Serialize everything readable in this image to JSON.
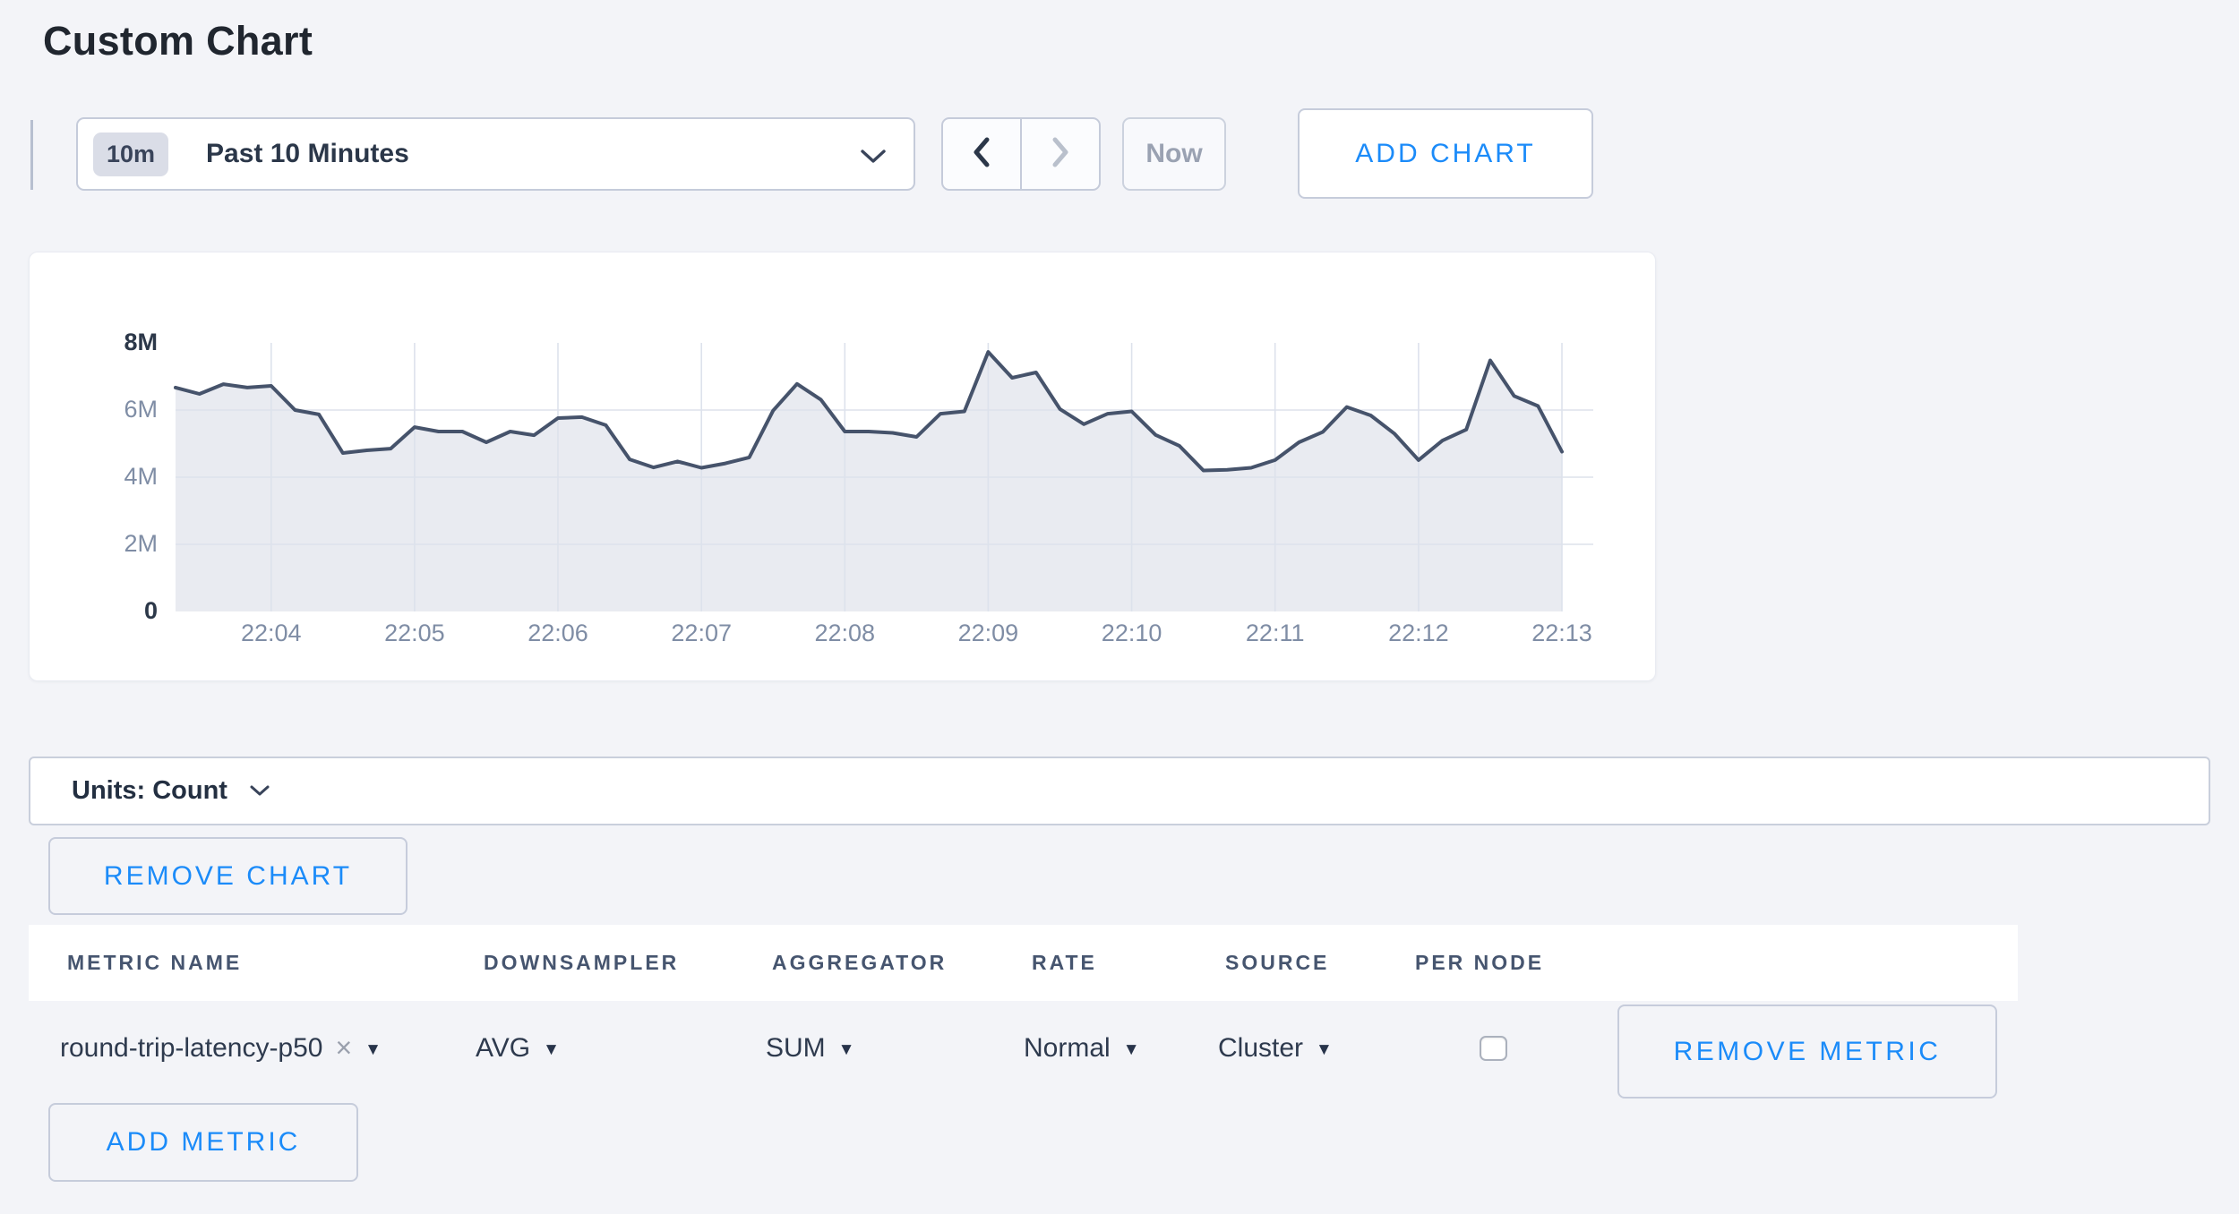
{
  "page_title": "Custom Chart",
  "toolbar": {
    "range_badge": "10m",
    "range_label": "Past 10 Minutes",
    "now_label": "Now",
    "add_chart_label": "ADD CHART"
  },
  "chart_card": {
    "units_label": "Units: Count",
    "remove_chart_label": "REMOVE CHART"
  },
  "metrics_table": {
    "headers": [
      "METRIC NAME",
      "DOWNSAMPLER",
      "AGGREGATOR",
      "RATE",
      "SOURCE",
      "PER NODE"
    ],
    "row": {
      "metric_name": "round-trip-latency-p50",
      "downsampler": "AVG",
      "aggregator": "SUM",
      "rate": "Normal",
      "source": "Cluster",
      "per_node_checked": false
    },
    "remove_metric_label": "REMOVE METRIC",
    "add_metric_label": "ADD METRIC"
  },
  "icons": {
    "dropdown_arrow": "▼",
    "remove_tag": "×"
  },
  "colors": {
    "accent_blue": "#1b8bf9",
    "line": "#46536b",
    "area_fill": "#e9ebf1",
    "grid": "#dde2ec",
    "axis_label": "#7f8da5",
    "axis_label_strong": "#2c3849"
  },
  "chart_data": {
    "type": "area",
    "title": "",
    "unit": "Count",
    "ylim_millions": [
      0,
      8
    ],
    "grid_y_values_millions": [
      6,
      4,
      2
    ],
    "y_ticks": [
      {
        "label": "8M",
        "value_millions": 8,
        "strong": true
      },
      {
        "label": "6M",
        "value_millions": 6,
        "strong": false
      },
      {
        "label": "4M",
        "value_millions": 4,
        "strong": false
      },
      {
        "label": "2M",
        "value_millions": 2,
        "strong": false
      },
      {
        "label": "0",
        "value_millions": 0,
        "strong": true
      }
    ],
    "x_ticks": [
      {
        "label": "22:04",
        "index": 4
      },
      {
        "label": "22:05",
        "index": 10
      },
      {
        "label": "22:06",
        "index": 16
      },
      {
        "label": "22:07",
        "index": 22
      },
      {
        "label": "22:08",
        "index": 28
      },
      {
        "label": "22:09",
        "index": 34
      },
      {
        "label": "22:10",
        "index": 40
      },
      {
        "label": "22:11",
        "index": 46
      },
      {
        "label": "22:12",
        "index": 52
      },
      {
        "label": "22:13",
        "index": 58
      }
    ],
    "values_millions": [
      6.67,
      6.48,
      6.77,
      6.67,
      6.72,
      6.0,
      5.87,
      4.72,
      4.8,
      4.85,
      5.49,
      5.36,
      5.36,
      5.04,
      5.36,
      5.25,
      5.76,
      5.79,
      5.55,
      4.53,
      4.29,
      4.47,
      4.28,
      4.41,
      4.59,
      5.98,
      6.78,
      6.31,
      5.36,
      5.36,
      5.32,
      5.2,
      5.89,
      5.96,
      7.73,
      6.96,
      7.12,
      6.03,
      5.58,
      5.89,
      5.96,
      5.26,
      4.93,
      4.2,
      4.22,
      4.28,
      4.51,
      5.04,
      5.35,
      6.09,
      5.84,
      5.29,
      4.51,
      5.09,
      5.42,
      7.48,
      6.42,
      6.12,
      4.76
    ]
  }
}
